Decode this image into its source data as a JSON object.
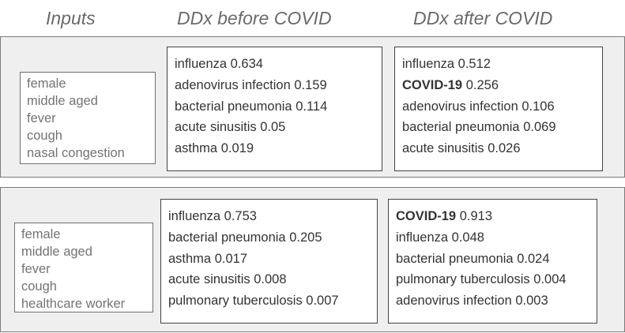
{
  "headers": {
    "inputs": "Inputs",
    "before": "DDx before COVID",
    "after": "DDx after COVID"
  },
  "cases": [
    {
      "inputs": [
        "female",
        "middle aged",
        "fever",
        "cough",
        "nasal congestion"
      ],
      "before": [
        {
          "name": "influenza",
          "score": "0.634"
        },
        {
          "name": "adenovirus infection",
          "score": "0.159"
        },
        {
          "name": "bacterial pneumonia",
          "score": "0.114"
        },
        {
          "name": "acute sinusitis",
          "score": "0.05"
        },
        {
          "name": "asthma",
          "score": "0.019"
        }
      ],
      "after": [
        {
          "name": "influenza",
          "score": "0.512"
        },
        {
          "name": "COVID-19",
          "score": "0.256",
          "bold": true
        },
        {
          "name": "adenovirus infection",
          "score": "0.106"
        },
        {
          "name": "bacterial pneumonia",
          "score": "0.069"
        },
        {
          "name": "acute sinusitis",
          "score": "0.026"
        }
      ]
    },
    {
      "inputs": [
        "female",
        "middle aged",
        "fever",
        "cough",
        "healthcare worker"
      ],
      "before": [
        {
          "name": "influenza",
          "score": "0.753"
        },
        {
          "name": "bacterial pneumonia",
          "score": "0.205"
        },
        {
          "name": "asthma",
          "score": "0.017"
        },
        {
          "name": "acute sinusitis",
          "score": "0.008"
        },
        {
          "name": "pulmonary tuberculosis",
          "score": "0.007"
        }
      ],
      "after": [
        {
          "name": "COVID-19",
          "score": "0.913",
          "bold": true
        },
        {
          "name": "influenza",
          "score": "0.048"
        },
        {
          "name": "bacterial pneumonia",
          "score": "0.024"
        },
        {
          "name": "pulmonary tuberculosis",
          "score": "0.004"
        },
        {
          "name": "adenovirus infection",
          "score": "0.003"
        }
      ]
    }
  ]
}
